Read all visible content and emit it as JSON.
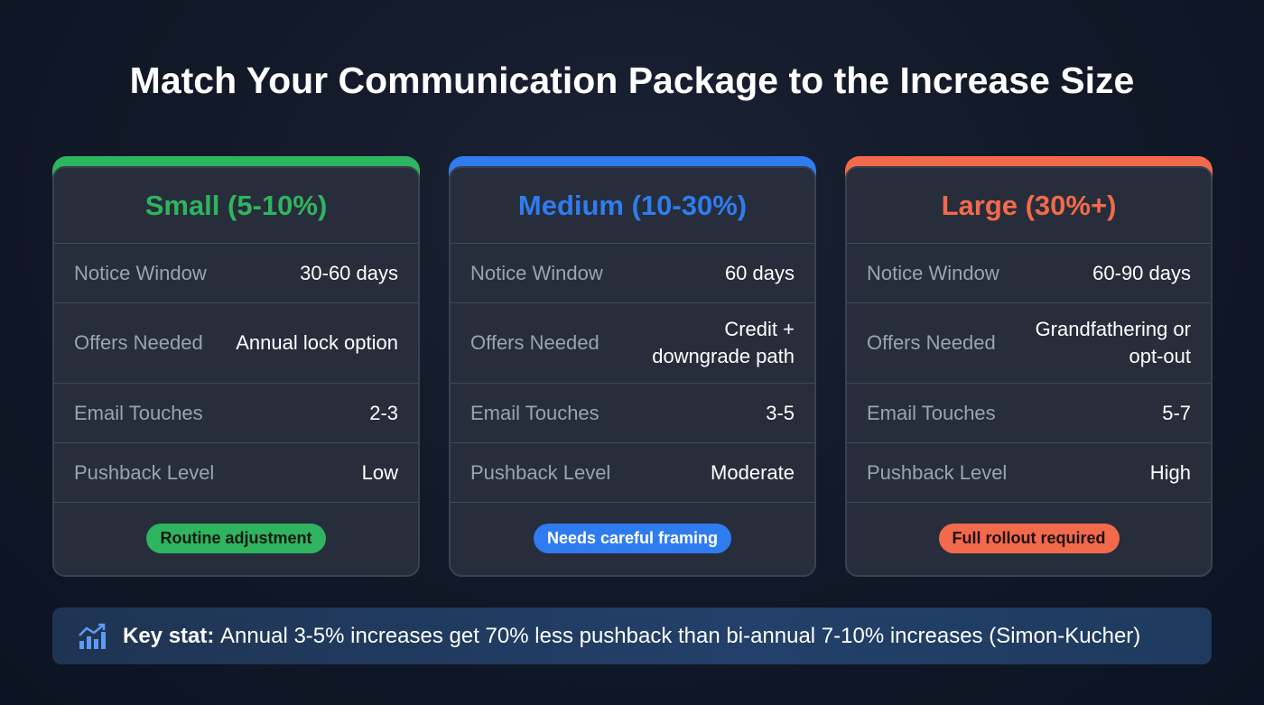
{
  "title": "Match Your Communication Package to the Increase Size",
  "cards": [
    {
      "heading": "Small (5-10%)",
      "accent": "#2fb45f",
      "rows": [
        {
          "label": "Notice Window",
          "value": "30-60 days"
        },
        {
          "label": "Offers Needed",
          "value": "Annual lock option"
        },
        {
          "label": "Email Touches",
          "value": "2-3"
        },
        {
          "label": "Pushback Level",
          "value": "Low"
        }
      ],
      "badge": "Routine adjustment",
      "badge_text_color": "#0f1a14"
    },
    {
      "heading": "Medium (10-30%)",
      "accent": "#2f7cf0",
      "rows": [
        {
          "label": "Notice Window",
          "value": "60 days"
        },
        {
          "label": "Offers Needed",
          "value": "Credit + downgrade path"
        },
        {
          "label": "Email Touches",
          "value": "3-5"
        },
        {
          "label": "Pushback Level",
          "value": "Moderate"
        }
      ],
      "badge": "Needs careful framing",
      "badge_text_color": "#ffffff"
    },
    {
      "heading": "Large (30%+)",
      "accent": "#f26a4b",
      "rows": [
        {
          "label": "Notice Window",
          "value": "60-90 days"
        },
        {
          "label": "Offers Needed",
          "value": "Grandfathering or opt-out"
        },
        {
          "label": "Email Touches",
          "value": "5-7"
        },
        {
          "label": "Pushback Level",
          "value": "High"
        }
      ],
      "badge": "Full rollout required",
      "badge_text_color": "#1e1210"
    }
  ],
  "key_stat": {
    "icon": "chart-trend-icon",
    "label": "Key stat:",
    "text": "Annual 3-5% increases get 70% less pushback than bi-annual 7-10% increases (Simon-Kucher)"
  }
}
